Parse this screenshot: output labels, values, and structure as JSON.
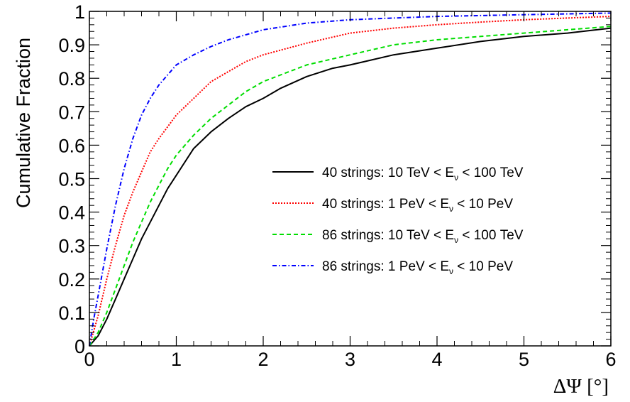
{
  "chart_data": {
    "type": "line",
    "title": "",
    "xlabel": "ΔΨ [°]",
    "ylabel": "Cumulative Fraction",
    "xlim": [
      0,
      6
    ],
    "ylim": [
      0,
      1
    ],
    "x_ticks": [
      "0",
      "1",
      "2",
      "3",
      "4",
      "5",
      "6"
    ],
    "y_ticks": [
      "0",
      "0.1",
      "0.2",
      "0.3",
      "0.4",
      "0.5",
      "0.6",
      "0.7",
      "0.8",
      "0.9",
      "1"
    ],
    "grid": false,
    "legend_position": "center-right",
    "series": [
      {
        "name": "40 strings: 10 TeV < Eν < 100 TeV",
        "legend_prefix": "40 strings: 10 TeV < E",
        "legend_sub": "ν",
        "legend_suffix": " < 100 TeV",
        "color": "#000000",
        "style": "solid",
        "x": [
          0,
          0.1,
          0.2,
          0.3,
          0.4,
          0.5,
          0.6,
          0.7,
          0.8,
          0.9,
          1.0,
          1.2,
          1.4,
          1.6,
          1.8,
          2.0,
          2.2,
          2.5,
          2.8,
          3.0,
          3.5,
          4.0,
          4.5,
          5.0,
          5.5,
          6.0
        ],
        "y": [
          0,
          0.03,
          0.08,
          0.14,
          0.2,
          0.26,
          0.32,
          0.37,
          0.42,
          0.47,
          0.51,
          0.59,
          0.64,
          0.68,
          0.715,
          0.74,
          0.77,
          0.805,
          0.83,
          0.84,
          0.87,
          0.89,
          0.91,
          0.925,
          0.935,
          0.95
        ]
      },
      {
        "name": "40 strings: 1 PeV < Eν < 10 PeV",
        "legend_prefix": "40 strings: 1 PeV < E",
        "legend_sub": "ν",
        "legend_suffix": " < 10 PeV",
        "color": "#ff0000",
        "style": "dotted",
        "x": [
          0,
          0.1,
          0.2,
          0.3,
          0.4,
          0.5,
          0.6,
          0.7,
          0.8,
          0.9,
          1.0,
          1.2,
          1.4,
          1.6,
          1.8,
          2.0,
          2.5,
          3.0,
          3.5,
          4.0,
          4.5,
          5.0,
          5.5,
          6.0
        ],
        "y": [
          0,
          0.09,
          0.2,
          0.3,
          0.39,
          0.46,
          0.52,
          0.58,
          0.62,
          0.655,
          0.69,
          0.74,
          0.79,
          0.82,
          0.85,
          0.87,
          0.905,
          0.935,
          0.95,
          0.96,
          0.968,
          0.975,
          0.98,
          0.985
        ]
      },
      {
        "name": "86 strings: 10 TeV < Eν < 100 TeV",
        "legend_prefix": "86 strings: 10 TeV < E",
        "legend_sub": "ν",
        "legend_suffix": " < 100 TeV",
        "color": "#00dd00",
        "style": "dashed",
        "x": [
          0,
          0.1,
          0.2,
          0.3,
          0.4,
          0.5,
          0.6,
          0.7,
          0.8,
          0.9,
          1.0,
          1.2,
          1.4,
          1.6,
          1.8,
          2.0,
          2.2,
          2.5,
          3.0,
          3.5,
          4.0,
          4.5,
          5.0,
          5.5,
          6.0
        ],
        "y": [
          0,
          0.04,
          0.1,
          0.17,
          0.24,
          0.31,
          0.37,
          0.43,
          0.48,
          0.53,
          0.57,
          0.63,
          0.68,
          0.72,
          0.76,
          0.79,
          0.81,
          0.84,
          0.87,
          0.9,
          0.915,
          0.925,
          0.935,
          0.945,
          0.955
        ]
      },
      {
        "name": "86 strings: 1 PeV < Eν < 10 PeV",
        "legend_prefix": "86 strings: 1 PeV < E",
        "legend_sub": "ν",
        "legend_suffix": " < 10 PeV",
        "color": "#0000ff",
        "style": "dash-dot",
        "x": [
          0,
          0.05,
          0.1,
          0.2,
          0.3,
          0.4,
          0.5,
          0.6,
          0.7,
          0.8,
          0.9,
          1.0,
          1.2,
          1.4,
          1.6,
          1.8,
          2.0,
          2.5,
          3.0,
          3.5,
          4.0,
          5.0,
          6.0
        ],
        "y": [
          0,
          0.08,
          0.15,
          0.29,
          0.42,
          0.53,
          0.62,
          0.69,
          0.74,
          0.78,
          0.81,
          0.84,
          0.87,
          0.895,
          0.915,
          0.93,
          0.945,
          0.965,
          0.975,
          0.98,
          0.985,
          0.99,
          0.995
        ]
      }
    ]
  }
}
